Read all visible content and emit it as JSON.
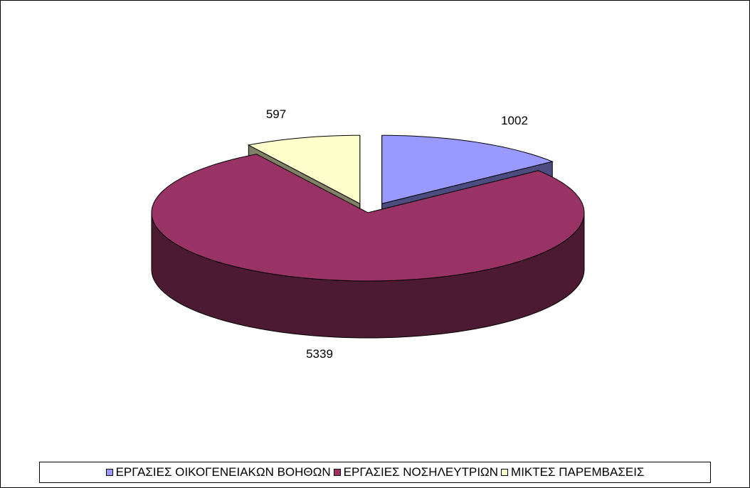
{
  "chart_data": {
    "type": "pie",
    "style": "3d-exploded",
    "start_angle_deg": 90,
    "direction": "clockwise",
    "series": [
      {
        "slices": [
          {
            "label": "ΕΡΓΑΣΙΕΣ ΟΙΚΟΓΕΝΕΙΑΚΩΝ ΒΟΗΘΩΝ",
            "value": 1002,
            "data_label": "1002",
            "color": "#9999ff",
            "side_color": "#4c4c80"
          },
          {
            "label": "ΕΡΓΑΣΙΕΣ ΝΟΣΗΛΕΥΤΡΙΩΝ",
            "value": 5339,
            "data_label": "5339",
            "color": "#993366",
            "side_color": "#4d1a33"
          },
          {
            "label": "ΜΙΚΤΕΣ ΠΑΡΕΜΒΑΣΕΙΣ",
            "value": 597,
            "data_label": "597",
            "color": "#ffffcc",
            "side_color": "#808066"
          }
        ]
      }
    ],
    "legend_position": "bottom"
  }
}
